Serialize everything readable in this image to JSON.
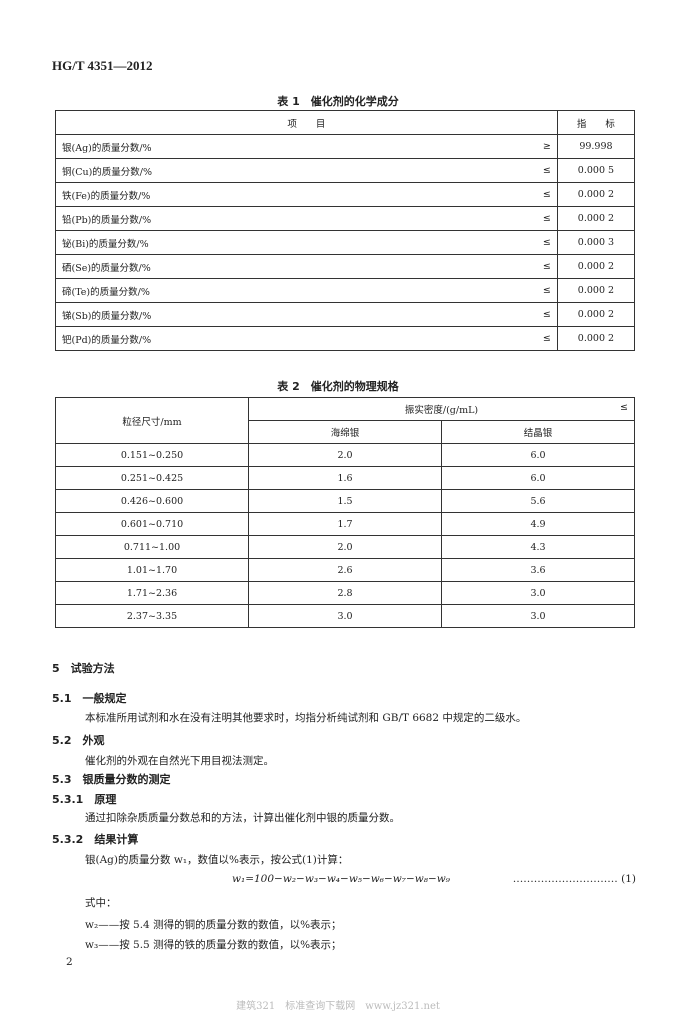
{
  "header": "HG/T 4351—2012",
  "table1": {
    "caption": "表 1　催化剂的化学成分",
    "headers": [
      "项　　目",
      "指　　标"
    ],
    "rows": [
      {
        "item": "银(Ag)的质量分数/%",
        "op": "≥",
        "value": "99.998"
      },
      {
        "item": "铜(Cu)的质量分数/%",
        "op": "≤",
        "value": "0.000 5"
      },
      {
        "item": "铁(Fe)的质量分数/%",
        "op": "≤",
        "value": "0.000 2"
      },
      {
        "item": "铅(Pb)的质量分数/%",
        "op": "≤",
        "value": "0.000 2"
      },
      {
        "item": "铋(Bi)的质量分数/%",
        "op": "≤",
        "value": "0.000 3"
      },
      {
        "item": "硒(Se)的质量分数/%",
        "op": "≤",
        "value": "0.000 2"
      },
      {
        "item": "碲(Te)的质量分数/%",
        "op": "≤",
        "value": "0.000 2"
      },
      {
        "item": "锑(Sb)的质量分数/%",
        "op": "≤",
        "value": "0.000 2"
      },
      {
        "item": "钯(Pd)的质量分数/%",
        "op": "≤",
        "value": "0.000 2"
      }
    ]
  },
  "table2": {
    "caption": "表 2　催化剂的物理规格",
    "col0": "粒径尺寸/mm",
    "group": "振实密度/(g/mL)",
    "group_op": "≤",
    "col1": "海绵银",
    "col2": "结晶银",
    "rows": [
      [
        "0.151~0.250",
        "2.0",
        "6.0"
      ],
      [
        "0.251~0.425",
        "1.6",
        "6.0"
      ],
      [
        "0.426~0.600",
        "1.5",
        "5.6"
      ],
      [
        "0.601~0.710",
        "1.7",
        "4.9"
      ],
      [
        "0.711~1.00",
        "2.0",
        "4.3"
      ],
      [
        "1.01~1.70",
        "2.6",
        "3.6"
      ],
      [
        "1.71~2.36",
        "2.8",
        "3.0"
      ],
      [
        "2.37~3.35",
        "3.0",
        "3.0"
      ]
    ]
  },
  "sec5": "5　试验方法",
  "sec51": "5.1　一般规定",
  "p51": "本标准所用试剂和水在没有注明其他要求时，均指分析纯试剂和 GB/T 6682 中规定的二级水。",
  "sec52": "5.2　外观",
  "p52": "催化剂的外观在自然光下用目视法测定。",
  "sec53": "5.3　银质量分数的测定",
  "sec531": "5.3.1　原理",
  "p531": "通过扣除杂质质量分数总和的方法，计算出催化剂中银的质量分数。",
  "sec532": "5.3.2　结果计算",
  "p532": "银(Ag)的质量分数 w₁，数值以%表示，按公式(1)计算：",
  "formula": "w₁=100−w₂−w₃−w₄−w₅−w₆−w₇−w₈−w₉",
  "formula_no": "………………………… (1)",
  "where": "式中：",
  "w2": "w₂——按 5.4 测得的铜的质量分数的数值，以%表示；",
  "w3": "w₃——按 5.5 测得的铁的质量分数的数值，以%表示；",
  "page_number": "2",
  "watermark": "建筑321　标准查询下载网　www.jz321.net"
}
